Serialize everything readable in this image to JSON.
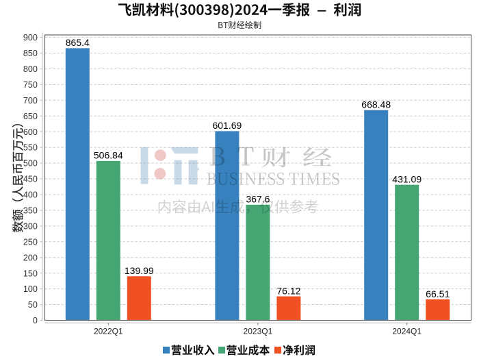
{
  "header": {
    "title": "飞凯材料(300398)2024一季报 – 利润",
    "subtitle": "BT财经绘制"
  },
  "chart_data": {
    "type": "bar",
    "title": "飞凯材料(300398)2024一季报 – 利润",
    "subtitle": "BT财经绘制",
    "categories": [
      "2022Q1",
      "2023Q1",
      "2024Q1"
    ],
    "series": [
      {
        "name": "营业收入",
        "color": "#3782be",
        "values": [
          865.4,
          601.69,
          668.48
        ]
      },
      {
        "name": "营业成本",
        "color": "#45a674",
        "values": [
          506.84,
          367.6,
          431.09
        ]
      },
      {
        "name": "净利润",
        "color": "#f05123",
        "values": [
          139.99,
          76.12,
          66.51
        ]
      }
    ],
    "xlabel": "",
    "ylabel": "数额（人民币百万元）",
    "ylim": [
      0,
      900
    ],
    "yticks": [
      0,
      50,
      100,
      150,
      200,
      250,
      300,
      350,
      400,
      450,
      500,
      550,
      600,
      650,
      700,
      750,
      800,
      850,
      900
    ],
    "grid": true,
    "grid_style": "dashed",
    "legend_position": "bottom",
    "value_labels": true
  },
  "legend": {
    "items": [
      {
        "label": "营业收入",
        "color": "#3782be"
      },
      {
        "label": "营业成本",
        "color": "#45a674"
      },
      {
        "label": "净利润",
        "color": "#f05123"
      }
    ]
  },
  "watermark": {
    "brand_latin": "BT",
    "brand_cjk": "财经",
    "brand_full": "BT财经",
    "business_times": "BUSINESS TIMES",
    "disclaimer": "内容由AI生成，仅供参考"
  },
  "colors": {
    "revenue": "#3782be",
    "cost": "#45a674",
    "net_profit": "#f05123",
    "grid_line": "#cccccc",
    "plot_border": "#595959",
    "axis_line": "#b3b3b3",
    "title_text": "#111111",
    "watermark_gray": "#c9c9c9",
    "background": "#ffffff"
  }
}
